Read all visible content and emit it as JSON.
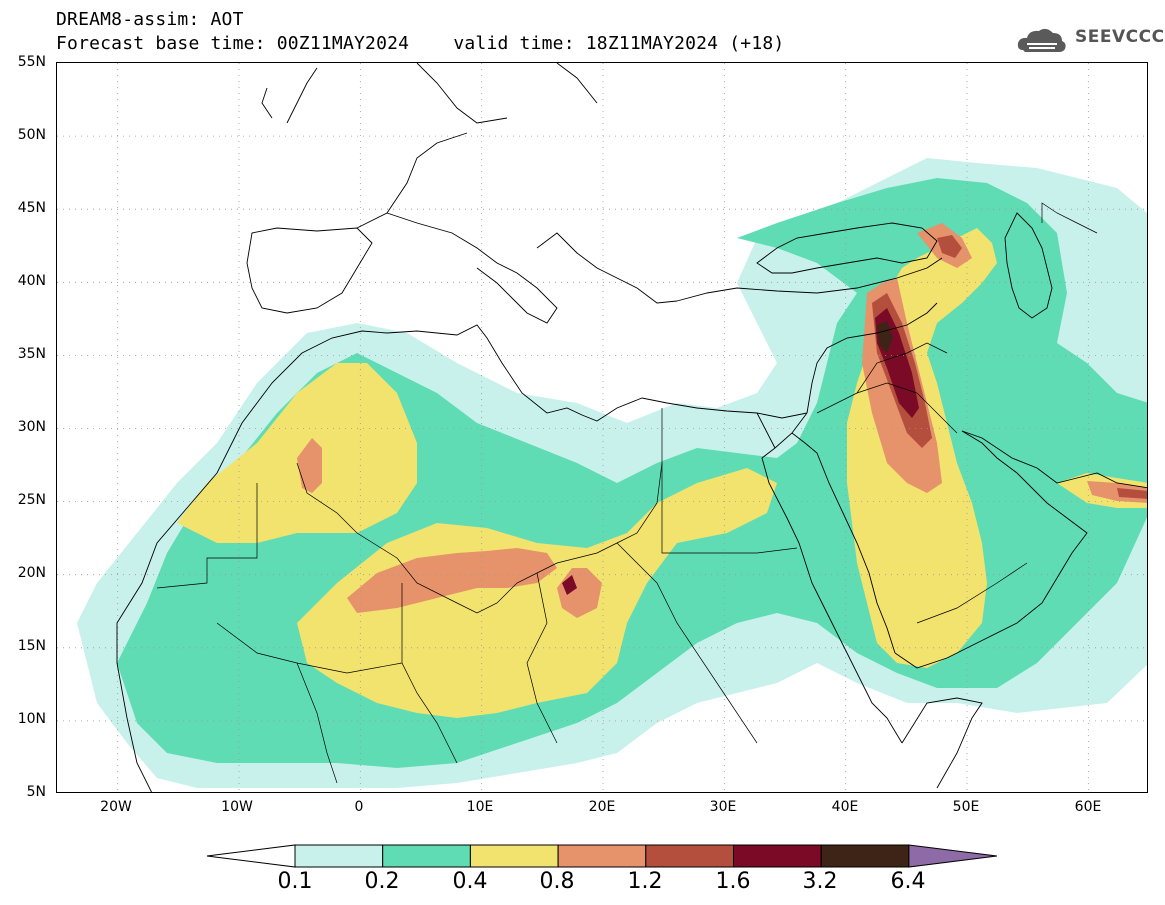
{
  "header": {
    "title_line1": "DREAM8-assim: AOT",
    "title_line2": "Forecast base time: 00Z11MAY2024    valid time: 18Z11MAY2024 (+18)",
    "logo_text": "SEEVCCC"
  },
  "map": {
    "lat_labels": [
      "55N",
      "50N",
      "45N",
      "40N",
      "35N",
      "30N",
      "25N",
      "20N",
      "15N",
      "10N",
      "5N"
    ],
    "lon_labels": [
      "20W",
      "10W",
      "0",
      "10E",
      "20E",
      "30E",
      "40E",
      "50E",
      "60E"
    ],
    "lon_range": [
      -25,
      65
    ],
    "lat_range": [
      5,
      55
    ]
  },
  "colorbar": {
    "labels": [
      "0.1",
      "0.2",
      "0.4",
      "0.8",
      "1.2",
      "1.6",
      "3.2",
      "6.4"
    ],
    "colors": [
      "#ffffff",
      "#c8f1ec",
      "#5fdcb4",
      "#f2e26e",
      "#e6926a",
      "#b44f3e",
      "#7a0a25",
      "#3e2416",
      "#8e6aa7"
    ]
  },
  "palette": {
    "c1": "#c8f1ec",
    "c2": "#5fdcb4",
    "c3": "#f2e26e",
    "c4": "#e6926a",
    "c5": "#b44f3e",
    "c6": "#7a0a25",
    "c7": "#3e2416"
  }
}
